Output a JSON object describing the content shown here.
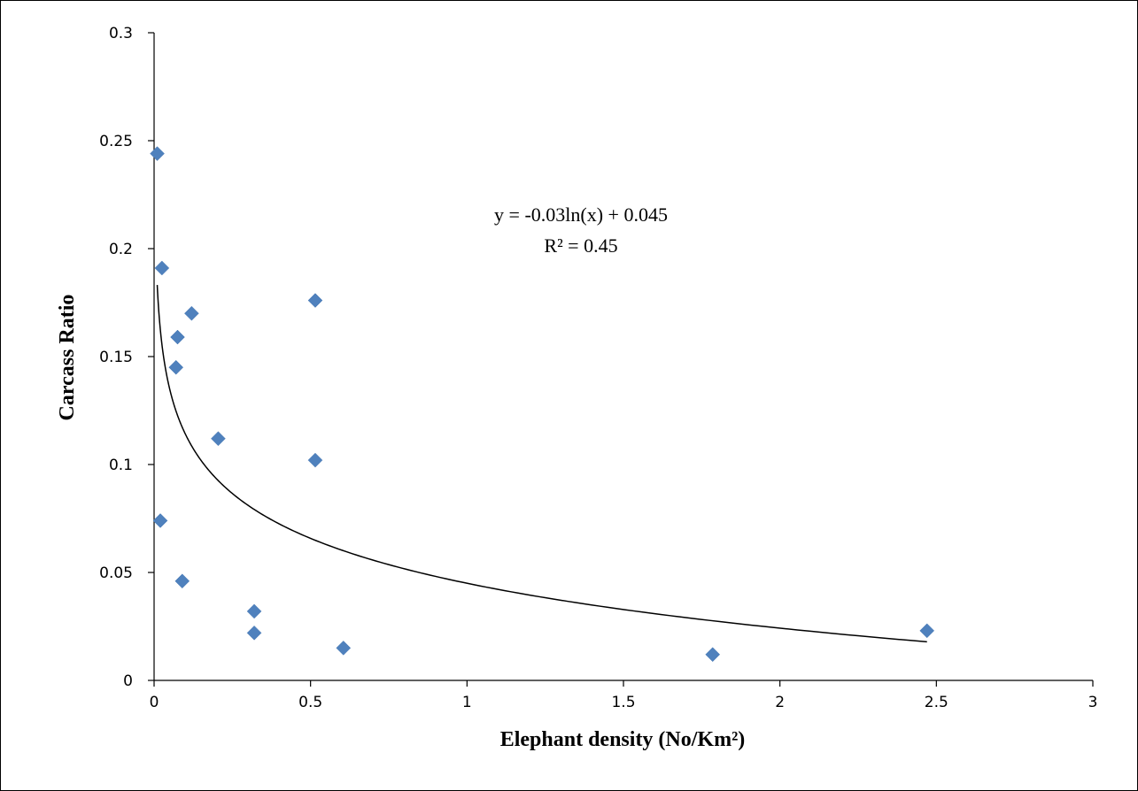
{
  "chart_data": {
    "type": "scatter",
    "title": "",
    "xlabel": "Elephant density (No/Km²)",
    "ylabel": "Carcass Ratio",
    "xlim": [
      0,
      3
    ],
    "ylim": [
      0,
      0.3
    ],
    "x_ticks": [
      "0",
      "0.5",
      "1",
      "1.5",
      "2",
      "2.5",
      "3"
    ],
    "y_ticks": [
      "0",
      "0.05",
      "0.1",
      "0.15",
      "0.2",
      "0.25",
      "0.3"
    ],
    "grid": false,
    "legend": "none",
    "marker_color": "#4f81bd",
    "series": [
      {
        "marker": "diamond",
        "points": [
          {
            "x": 0.01,
            "y": 0.244
          },
          {
            "x": 0.025,
            "y": 0.191
          },
          {
            "x": 0.12,
            "y": 0.17
          },
          {
            "x": 0.075,
            "y": 0.159
          },
          {
            "x": 0.07,
            "y": 0.145
          },
          {
            "x": 0.205,
            "y": 0.112
          },
          {
            "x": 0.515,
            "y": 0.176
          },
          {
            "x": 0.515,
            "y": 0.102
          },
          {
            "x": 0.02,
            "y": 0.074
          },
          {
            "x": 0.09,
            "y": 0.046
          },
          {
            "x": 0.32,
            "y": 0.032
          },
          {
            "x": 0.32,
            "y": 0.022
          },
          {
            "x": 0.605,
            "y": 0.015
          },
          {
            "x": 1.785,
            "y": 0.012
          },
          {
            "x": 2.47,
            "y": 0.023
          }
        ]
      }
    ],
    "trendline": {
      "type": "logarithmic",
      "a": -0.03,
      "b": 0.045,
      "x_range": [
        0.01,
        2.47
      ],
      "equation_label": "y = -0.03ln(x) + 0.045",
      "r2_label": "R² = 0.45"
    }
  }
}
